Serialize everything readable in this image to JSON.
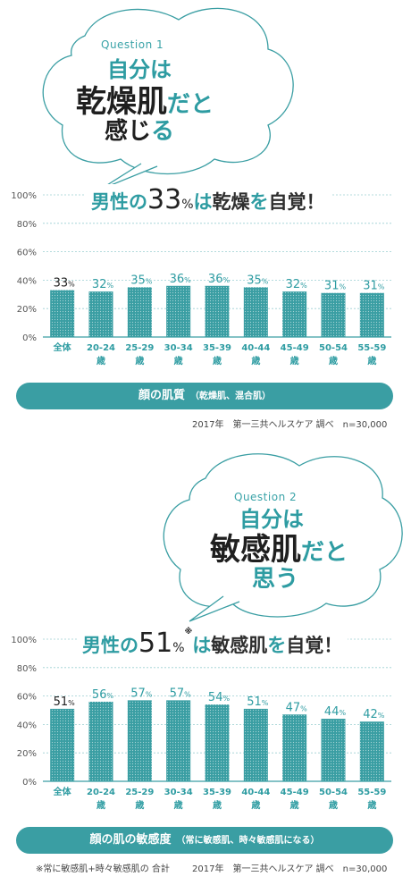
{
  "sections": [
    {
      "question": {
        "label": "Question 1",
        "line1": "自分は",
        "line2a": "乾燥肌",
        "line2b": "だと",
        "line3a": "感じ",
        "line3b": "る"
      },
      "headline": {
        "prefix": "男性の",
        "number": "33",
        "pct": "%",
        "mark": "",
        "middle": "は",
        "keyword": "乾燥",
        "suffix1": "を",
        "suffix2": "自覚！"
      },
      "pill": {
        "main": "顔の肌質",
        "sub": "（乾燥肌、混合肌）"
      },
      "source": "2017年　第一三共ヘルスケア 調べ　n=30,000",
      "note": ""
    },
    {
      "question": {
        "label": "Question 2",
        "line1": "自分は",
        "line2a": "敏感肌",
        "line2b": "だと",
        "line3a": "思う",
        "line3b": ""
      },
      "headline": {
        "prefix": "男性の",
        "number": "51",
        "pct": "%",
        "mark": "※",
        "middle": "は",
        "keyword": "敏感肌",
        "suffix1": "を",
        "suffix2": "自覚！"
      },
      "pill": {
        "main": "顔の肌の敏感度",
        "sub": "（常に敏感肌、時々敏感肌になる）"
      },
      "source": "2017年　第一三共ヘルスケア 調べ　n=30,000",
      "note": "※常に敏感肌+時々敏感肌の 合計"
    }
  ],
  "chart_data": [
    {
      "type": "bar",
      "categories": [
        "全体",
        "20-24|歳",
        "25-29|歳",
        "30-34|歳",
        "35-39|歳",
        "40-44|歳",
        "45-49|歳",
        "50-54|歳",
        "55-59|歳"
      ],
      "values": [
        33,
        32,
        35,
        36,
        36,
        35,
        32,
        31,
        31
      ],
      "value_unit": "%",
      "y_ticks": [
        "0%",
        "20%",
        "40%",
        "60%",
        "80%",
        "100%"
      ],
      "ylim": [
        0,
        100
      ],
      "grid": true,
      "color": "#3a9ea3"
    },
    {
      "type": "bar",
      "categories": [
        "全体",
        "20-24|歳",
        "25-29|歳",
        "30-34|歳",
        "35-39|歳",
        "40-44|歳",
        "45-49|歳",
        "50-54|歳",
        "55-59|歳"
      ],
      "values": [
        51,
        56,
        57,
        57,
        54,
        51,
        47,
        44,
        42
      ],
      "value_unit": "%",
      "y_ticks": [
        "0%",
        "20%",
        "40%",
        "60%",
        "80%",
        "100%"
      ],
      "ylim": [
        0,
        100
      ],
      "grid": true,
      "color": "#3a9ea3"
    }
  ]
}
